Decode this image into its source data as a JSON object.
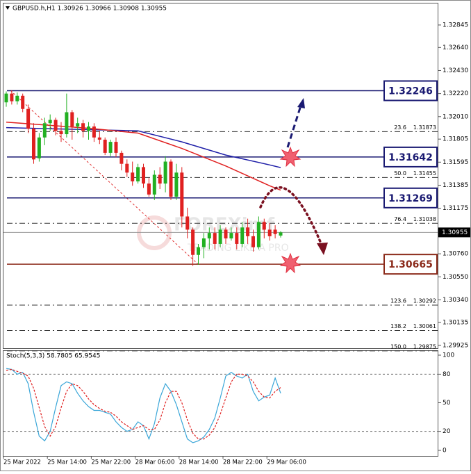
{
  "chart_data": [
    {
      "type": "candlestick",
      "title": "GBPUSD.h,H1  1.30926 1.30966 1.30908 1.30955",
      "categories": [
        "25 Mar 2022",
        null,
        null,
        null,
        null,
        null,
        null,
        null,
        "25 Mar 14:00",
        null,
        null,
        null,
        null,
        null,
        null,
        null,
        "25 Mar 22:00",
        null,
        null,
        null,
        null,
        null,
        null,
        null,
        "28 Mar 06:00",
        null,
        null,
        null,
        null,
        null,
        null,
        null,
        "28 Mar 14:00",
        null,
        null,
        null,
        null,
        null,
        null,
        null,
        "28 Mar 22:00",
        null,
        null,
        null,
        null,
        null,
        null,
        null,
        "29 Mar 06:00",
        null,
        null
      ],
      "open": [
        1.3214,
        1.3222,
        1.3215,
        1.322,
        1.3208,
        1.319,
        1.3163,
        1.3182,
        1.3195,
        1.3198,
        1.3188,
        1.3185,
        1.3205,
        1.3192,
        1.3195,
        1.3188,
        1.3192,
        1.3182,
        1.318,
        1.3168,
        1.3178,
        1.3168,
        1.3158,
        1.315,
        1.3142,
        1.3155,
        1.314,
        1.313,
        1.3148,
        1.314,
        1.316,
        1.3128,
        1.315,
        1.311,
        1.3098,
        1.3075,
        1.3082,
        1.309,
        1.3095,
        1.3085,
        1.3098,
        1.309,
        1.3095,
        1.3085,
        1.31,
        1.3092,
        1.3082,
        1.3105,
        1.3098,
        1.3098,
        1.30926
      ],
      "high": [
        1.3224,
        1.3225,
        1.3223,
        1.3222,
        1.3212,
        1.3195,
        1.3186,
        1.32,
        1.3203,
        1.32,
        1.3196,
        1.3222,
        1.3207,
        1.32,
        1.3198,
        1.3196,
        1.3195,
        1.3188,
        1.3182,
        1.318,
        1.3182,
        1.317,
        1.3162,
        1.316,
        1.3158,
        1.3158,
        1.3145,
        1.3152,
        1.3155,
        1.3165,
        1.3162,
        1.3158,
        1.3155,
        1.3118,
        1.31,
        1.3085,
        1.3095,
        1.31,
        1.31,
        1.3102,
        1.31,
        1.31,
        1.31,
        1.3105,
        1.3108,
        1.3098,
        1.311,
        1.3108,
        1.3104,
        1.3102,
        1.30966
      ],
      "low": [
        1.321,
        1.3212,
        1.3212,
        1.3205,
        1.3186,
        1.3158,
        1.316,
        1.3175,
        1.3188,
        1.3184,
        1.3178,
        1.3182,
        1.318,
        1.3186,
        1.3182,
        1.318,
        1.3178,
        1.3176,
        1.3166,
        1.3165,
        1.3164,
        1.3152,
        1.3146,
        1.3138,
        1.314,
        1.3136,
        1.3128,
        1.3125,
        1.3135,
        1.3132,
        1.3125,
        1.3125,
        1.31,
        1.309,
        1.3065,
        1.3066,
        1.3072,
        1.308,
        1.308,
        1.3082,
        1.3085,
        1.3088,
        1.308,
        1.3082,
        1.3085,
        1.3078,
        1.308,
        1.309,
        1.3088,
        1.309,
        1.30908
      ],
      "close": [
        1.3222,
        1.3215,
        1.322,
        1.3208,
        1.319,
        1.3162,
        1.3182,
        1.3195,
        1.3198,
        1.3188,
        1.3185,
        1.3205,
        1.3192,
        1.3195,
        1.3188,
        1.3192,
        1.3182,
        1.318,
        1.3168,
        1.3178,
        1.3168,
        1.3158,
        1.315,
        1.3142,
        1.3155,
        1.314,
        1.313,
        1.3148,
        1.314,
        1.316,
        1.3128,
        1.315,
        1.311,
        1.3098,
        1.3075,
        1.3082,
        1.309,
        1.3095,
        1.3085,
        1.3098,
        1.309,
        1.3095,
        1.3085,
        1.31,
        1.3092,
        1.3082,
        1.3105,
        1.3098,
        1.3092,
        1.3094,
        1.30955
      ],
      "up_color": "#22b022",
      "down_color": "#e02020",
      "moving_averages": [
        {
          "color": "#1f1fa8",
          "x": [
            0,
            8,
            16,
            24,
            32,
            40,
            48,
            50
          ],
          "values": [
            1.3191,
            1.319,
            1.3189,
            1.3188,
            1.3178,
            1.3166,
            1.3157,
            1.31546
          ]
        },
        {
          "color": "#e02020",
          "x": [
            0,
            8,
            16,
            24,
            32,
            40,
            48,
            50
          ],
          "values": [
            1.3196,
            1.3193,
            1.319,
            1.3186,
            1.3172,
            1.3156,
            1.3138,
            1.3134
          ]
        }
      ],
      "levels": [
        {
          "value": 1.32246,
          "color": "#1a1a72"
        },
        {
          "value": 1.31642,
          "color": "#1a1a72"
        },
        {
          "value": 1.31269,
          "color": "#1a1a72"
        },
        {
          "value": 1.30665,
          "color": "#8b2a1a"
        }
      ],
      "fib_levels": [
        {
          "level": "23.6",
          "price": 1.31873
        },
        {
          "level": "50.0",
          "price": 1.31455
        },
        {
          "level": "76.4",
          "price": 1.31038
        },
        {
          "level": "123.6",
          "price": 1.30292
        },
        {
          "level": "138.2",
          "price": 1.30061
        },
        {
          "level": "150.0",
          "price": 1.29875
        }
      ],
      "last_price": 1.30955,
      "watermark": [
        "FOREXimf",
        "TRADING LIKE A PRO"
      ],
      "ylim": [
        1.29906,
        1.33041
      ],
      "yticks": [
        1.32845,
        {
          "value": 1.3264,
          "label": "1.32640"
        },
        {
          "value": 1.3243,
          "label": "1.32430"
        },
        {
          "value": 1.3222,
          "label": "1.32220"
        },
        {
          "value": 1.3201,
          "label": "1.32010"
        },
        1.31805,
        1.31595,
        1.31385,
        1.31175,
        {
          "value": 1.3076,
          "label": "1.30760"
        },
        {
          "value": 1.3055,
          "label": "1.30550"
        },
        {
          "value": 1.3034,
          "label": "1.30340"
        },
        1.30135,
        1.29925
      ]
    },
    {
      "type": "line",
      "title": "Stoch(5,3,3) 58.7805 65.9545",
      "series": [
        {
          "color": "#3aa6d8",
          "values": [
            86,
            85,
            80,
            82,
            70,
            40,
            15,
            10,
            20,
            45,
            68,
            72,
            70,
            60,
            52,
            46,
            42,
            42,
            40,
            38,
            30,
            24,
            20,
            22,
            30,
            26,
            12,
            28,
            55,
            70,
            62,
            48,
            30,
            12,
            8,
            10,
            14,
            22,
            34,
            55,
            78,
            82,
            78,
            76,
            80,
            62,
            52,
            56,
            58,
            76,
            60
          ]
        },
        {
          "color": "#e02020",
          "dashed": true,
          "values": [
            84,
            85,
            83,
            81,
            78,
            65,
            45,
            25,
            15,
            25,
            45,
            62,
            70,
            68,
            62,
            54,
            48,
            44,
            41,
            40,
            36,
            30,
            26,
            22,
            24,
            26,
            22,
            22,
            32,
            50,
            62,
            62,
            50,
            32,
            18,
            12,
            12,
            16,
            24,
            38,
            55,
            72,
            80,
            80,
            78,
            72,
            62,
            56,
            55,
            62,
            66
          ]
        }
      ],
      "levels": [
        20,
        80
      ],
      "ylim": [
        0,
        100
      ],
      "yticks": [
        100,
        80,
        50,
        20,
        0
      ]
    }
  ]
}
